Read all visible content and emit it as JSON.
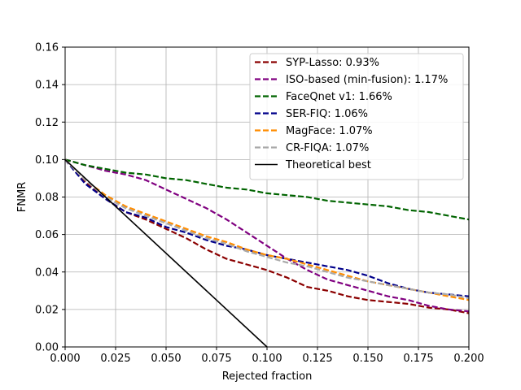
{
  "chart_data": {
    "type": "line",
    "xlabel": "Rejected fraction",
    "ylabel": "FNMR",
    "xlim": [
      0.0,
      0.2
    ],
    "ylim": [
      0.0,
      0.16
    ],
    "xticks": [
      "0.000",
      "0.025",
      "0.050",
      "0.075",
      "0.100",
      "0.125",
      "0.150",
      "0.175",
      "0.200"
    ],
    "yticks": [
      "0.00",
      "0.02",
      "0.04",
      "0.06",
      "0.08",
      "0.10",
      "0.12",
      "0.14",
      "0.16"
    ],
    "grid": true,
    "legend_position": "top-right",
    "series": [
      {
        "name": "SYP-Lasso: 0.93%",
        "color": "#8b0000",
        "style": "dashed",
        "x": [
          0.0,
          0.01,
          0.02,
          0.03,
          0.04,
          0.05,
          0.06,
          0.07,
          0.08,
          0.09,
          0.1,
          0.11,
          0.12,
          0.13,
          0.14,
          0.15,
          0.16,
          0.17,
          0.18,
          0.19,
          0.2
        ],
        "y": [
          0.1,
          0.088,
          0.079,
          0.072,
          0.068,
          0.063,
          0.058,
          0.052,
          0.047,
          0.044,
          0.041,
          0.037,
          0.032,
          0.03,
          0.027,
          0.025,
          0.024,
          0.023,
          0.021,
          0.02,
          0.018
        ]
      },
      {
        "name": "ISO-based (min-fusion): 1.17%",
        "color": "#800080",
        "style": "dashed",
        "x": [
          0.0,
          0.01,
          0.02,
          0.03,
          0.04,
          0.05,
          0.06,
          0.07,
          0.08,
          0.09,
          0.1,
          0.11,
          0.12,
          0.13,
          0.14,
          0.15,
          0.16,
          0.17,
          0.18,
          0.19,
          0.2
        ],
        "y": [
          0.1,
          0.097,
          0.094,
          0.092,
          0.089,
          0.084,
          0.079,
          0.074,
          0.068,
          0.061,
          0.054,
          0.047,
          0.041,
          0.036,
          0.033,
          0.03,
          0.027,
          0.025,
          0.022,
          0.02,
          0.019
        ]
      },
      {
        "name": "FaceQnet v1: 1.66%",
        "color": "#006400",
        "style": "dashed",
        "x": [
          0.0,
          0.01,
          0.02,
          0.03,
          0.04,
          0.05,
          0.06,
          0.07,
          0.08,
          0.09,
          0.1,
          0.11,
          0.12,
          0.13,
          0.14,
          0.15,
          0.16,
          0.17,
          0.18,
          0.19,
          0.2
        ],
        "y": [
          0.1,
          0.097,
          0.095,
          0.093,
          0.092,
          0.09,
          0.089,
          0.087,
          0.085,
          0.084,
          0.082,
          0.081,
          0.08,
          0.078,
          0.077,
          0.076,
          0.075,
          0.073,
          0.072,
          0.07,
          0.068
        ]
      },
      {
        "name": "SER-FIQ: 1.06%",
        "color": "#00008b",
        "style": "dashed",
        "x": [
          0.0,
          0.01,
          0.02,
          0.03,
          0.04,
          0.05,
          0.06,
          0.07,
          0.08,
          0.09,
          0.1,
          0.11,
          0.12,
          0.13,
          0.14,
          0.15,
          0.16,
          0.17,
          0.18,
          0.19,
          0.2
        ],
        "y": [
          0.1,
          0.087,
          0.079,
          0.072,
          0.069,
          0.064,
          0.061,
          0.057,
          0.054,
          0.052,
          0.049,
          0.047,
          0.045,
          0.043,
          0.041,
          0.038,
          0.034,
          0.031,
          0.029,
          0.028,
          0.027
        ]
      },
      {
        "name": "MagFace: 1.07%",
        "color": "#ff8c00",
        "style": "dashed",
        "x": [
          0.0,
          0.01,
          0.02,
          0.03,
          0.04,
          0.05,
          0.06,
          0.07,
          0.08,
          0.09,
          0.1,
          0.11,
          0.12,
          0.13,
          0.14,
          0.15,
          0.16,
          0.17,
          0.18,
          0.19,
          0.2
        ],
        "y": [
          0.1,
          0.089,
          0.081,
          0.075,
          0.071,
          0.067,
          0.063,
          0.059,
          0.056,
          0.052,
          0.049,
          0.047,
          0.044,
          0.041,
          0.038,
          0.035,
          0.033,
          0.031,
          0.029,
          0.027,
          0.025
        ]
      },
      {
        "name": "CR-FIQA: 1.07%",
        "color": "#a9a9a9",
        "style": "dashed",
        "x": [
          0.0,
          0.01,
          0.02,
          0.03,
          0.04,
          0.05,
          0.06,
          0.07,
          0.08,
          0.09,
          0.1,
          0.11,
          0.12,
          0.13,
          0.14,
          0.15,
          0.16,
          0.17,
          0.18,
          0.19,
          0.2
        ],
        "y": [
          0.1,
          0.089,
          0.08,
          0.074,
          0.07,
          0.066,
          0.062,
          0.058,
          0.055,
          0.051,
          0.048,
          0.045,
          0.043,
          0.04,
          0.037,
          0.035,
          0.033,
          0.031,
          0.029,
          0.028,
          0.026
        ]
      },
      {
        "name": "Theoretical best",
        "color": "#000000",
        "style": "solid",
        "x": [
          0.0,
          0.1
        ],
        "y": [
          0.1,
          0.0
        ]
      }
    ]
  }
}
